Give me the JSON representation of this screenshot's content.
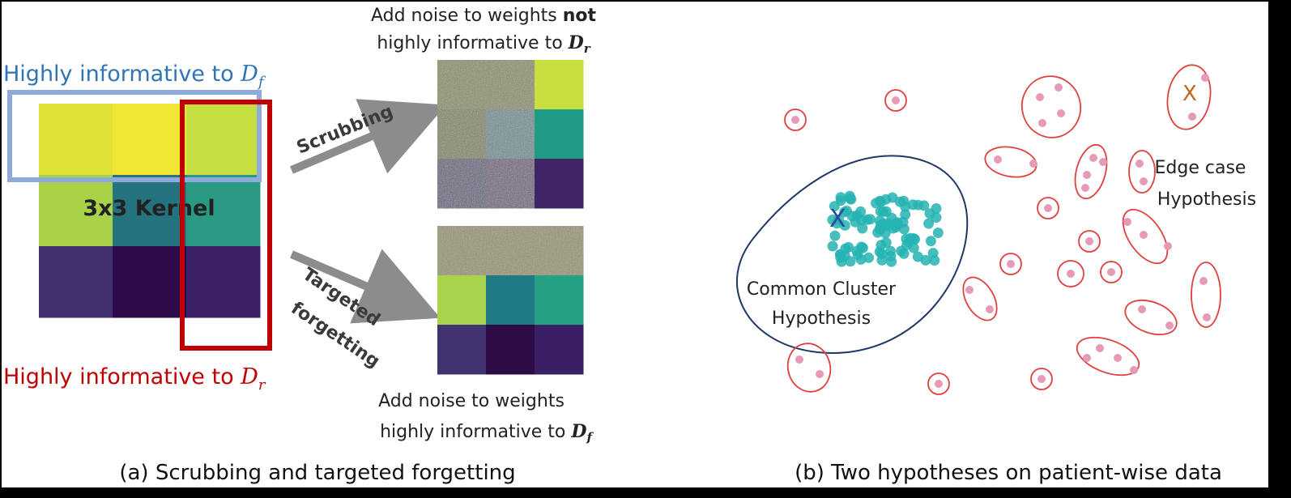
{
  "panel_a": {
    "blue_label": "Highly informative to ",
    "blue_sym": "D",
    "blue_sub": "f",
    "red_label": "Highly informative to ",
    "red_sym": "D",
    "red_sub": "r",
    "kernel_label": "3x3 Kernel",
    "kernel_colors": [
      [
        "#dfe138",
        "#f1e633",
        "#c5df43"
      ],
      [
        "#a9d249",
        "#24737f",
        "#2b9a82"
      ],
      [
        "#43306e",
        "#2d0b48",
        "#3b2066"
      ]
    ],
    "top_caption_line1": "Add noise to weights ",
    "top_caption_bold": "not",
    "top_caption_line2": "highly informative to ",
    "top_caption_sym": "D",
    "top_caption_sub": "r",
    "arrow_top_label": "Scrubbing",
    "arrow_bottom_label_1": "Targeted",
    "arrow_bottom_label_2": "forgetting",
    "grid_top_colors": [
      [
        "#8a8c62",
        "#8a8c62",
        "#c9df3f"
      ],
      [
        "#7d845e",
        "#6d8c8d",
        "#1f9b86"
      ],
      [
        "#5e5e78",
        "#6b5f78",
        "#3f2566"
      ]
    ],
    "grid_bottom_colors": [
      [
        "#93916a",
        "#93916a",
        "#93916a"
      ],
      [
        "#a8d34c",
        "#1f7a86",
        "#26a184"
      ],
      [
        "#40336f",
        "#2c0b46",
        "#3b1f65"
      ]
    ],
    "bottom_caption_line1": "Add noise to weights",
    "bottom_caption_line2": "highly informative to ",
    "bottom_caption_sym": "D",
    "bottom_caption_sub": "f",
    "caption": "(a) Scrubbing and targeted forgetting"
  },
  "panel_b": {
    "common_label_1": "Common Cluster",
    "common_label_2": "Hypothesis",
    "edge_label_1": "Edge case",
    "edge_label_2": "Hypothesis",
    "x_mark": "X",
    "caption": "(b) Two hypotheses on patient-wise data"
  },
  "colors": {
    "blue_box": "#8eaadb",
    "red_box": "#c00000",
    "blue_text": "#2e75b6",
    "red_text": "#c00000",
    "arrow": "#8c8c8c",
    "teal_dot": "#26b3b3",
    "pink_dot": "#e79ab8",
    "outline_red": "#e04040",
    "outline_navy": "#1f3864",
    "x_blue": "#2e4b9b",
    "x_orange": "#c5641e"
  }
}
